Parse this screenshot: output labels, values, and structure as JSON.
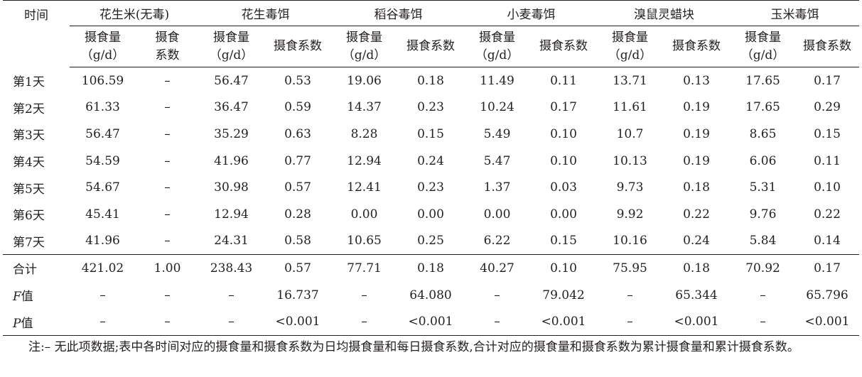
{
  "table": {
    "row_header": "时间",
    "groups": [
      {
        "name": "花生米(无毒)",
        "col1": "摄食量\n（g/d）",
        "col2": "摄食\n系数"
      },
      {
        "name": "花生毒饵",
        "col1": "摄食量\n（g/d）",
        "col2": "摄食系数"
      },
      {
        "name": "稻谷毒饵",
        "col1": "摄食量\n（g/d）",
        "col2": "摄食系数"
      },
      {
        "name": "小麦毒饵",
        "col1": "摄食量\n（g/d）",
        "col2": "摄食系数"
      },
      {
        "name": "溴鼠灵蜡块",
        "col1": "摄食量\n（g/d）",
        "col2": "摄食系数"
      },
      {
        "name": "玉米毒饵",
        "col1": "摄食量\n（g/d）",
        "col2": "摄食系数"
      }
    ],
    "rows": [
      {
        "label": "第1天",
        "cells": [
          "106.59",
          "–",
          "56.47",
          "0.53",
          "19.06",
          "0.18",
          "11.49",
          "0.11",
          "13.71",
          "0.13",
          "17.65",
          "0.17"
        ]
      },
      {
        "label": "第2天",
        "cells": [
          "61.33",
          "–",
          "36.47",
          "0.59",
          "14.37",
          "0.23",
          "10.24",
          "0.17",
          "11.61",
          "0.19",
          "17.65",
          "0.29"
        ]
      },
      {
        "label": "第3天",
        "cells": [
          "56.47",
          "–",
          "35.29",
          "0.63",
          "8.28",
          "0.15",
          "5.49",
          "0.10",
          "10.7",
          "0.19",
          "8.65",
          "0.15"
        ]
      },
      {
        "label": "第4天",
        "cells": [
          "54.59",
          "–",
          "41.96",
          "0.77",
          "12.94",
          "0.24",
          "5.47",
          "0.10",
          "10.13",
          "0.19",
          "6.06",
          "0.11"
        ]
      },
      {
        "label": "第5天",
        "cells": [
          "54.67",
          "–",
          "30.98",
          "0.57",
          "12.41",
          "0.23",
          "1.37",
          "0.03",
          "9.73",
          "0.18",
          "5.31",
          "0.10"
        ]
      },
      {
        "label": "第6天",
        "cells": [
          "45.41",
          "–",
          "12.94",
          "0.28",
          "0.00",
          "0.00",
          "0.00",
          "0.00",
          "9.92",
          "0.22",
          "9.76",
          "0.22"
        ]
      },
      {
        "label": "第7天",
        "cells": [
          "41.96",
          "–",
          "24.31",
          "0.58",
          "10.65",
          "0.25",
          "6.22",
          "0.15",
          "10.16",
          "0.24",
          "5.84",
          "0.14"
        ]
      },
      {
        "label": "合计",
        "cells": [
          "421.02",
          "1.00",
          "238.43",
          "0.57",
          "77.71",
          "0.18",
          "40.27",
          "0.10",
          "75.95",
          "0.18",
          "70.92",
          "0.17"
        ]
      },
      {
        "label_var": "F",
        "label_suffix": "值",
        "cells": [
          "–",
          "–",
          "–",
          "16.737",
          "–",
          "64.080",
          "–",
          "79.042",
          "–",
          "65.344",
          "–",
          "65.796"
        ]
      },
      {
        "label_var": "P",
        "label_suffix": "值",
        "cells": [
          "–",
          "–",
          "–",
          "<0.001",
          "–",
          "<0.001",
          "–",
          "<0.001",
          "–",
          "<0.001",
          "–",
          "<0.001"
        ]
      }
    ]
  },
  "note": "注:– 无此项数据;表中各时间对应的摄食量和摄食系数为日均摄食量和每日摄食系数,合计对应的摄食量和摄食系数为累计摄食量和累计摄食系数。"
}
